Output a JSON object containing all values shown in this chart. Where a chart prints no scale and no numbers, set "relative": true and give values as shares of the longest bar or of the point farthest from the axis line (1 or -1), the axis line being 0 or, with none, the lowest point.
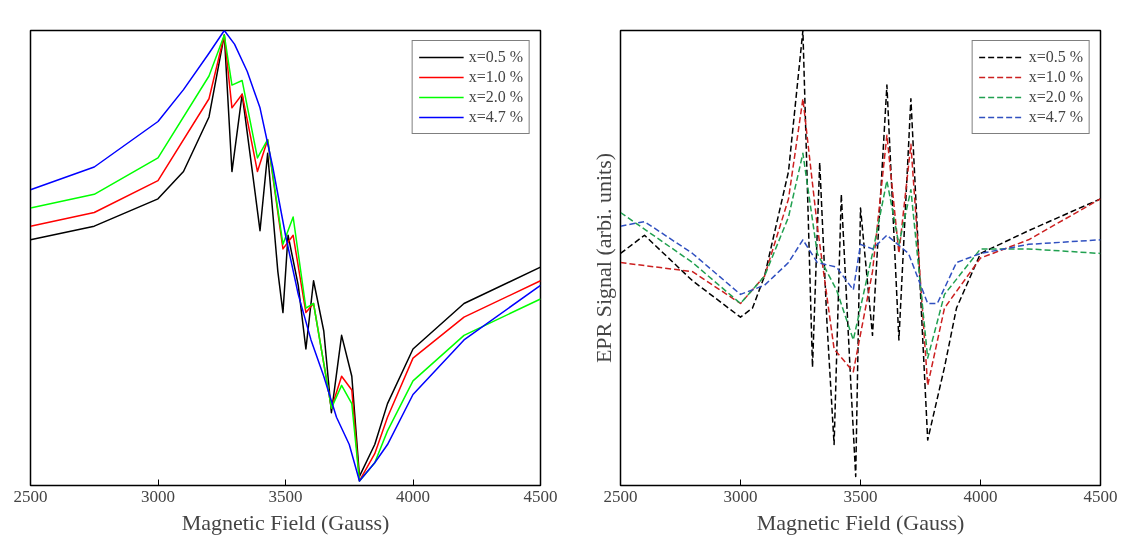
{
  "chart_data": [
    {
      "type": "line",
      "xlabel": "Magnetic Field (Gauss)",
      "relative": true,
      "xlim": [
        2500,
        4500
      ],
      "xticks": [
        2500,
        3000,
        3500,
        4000,
        4500
      ],
      "tick_labels": "x",
      "legend": "top right",
      "grid": false,
      "line_style": "solid",
      "series": [
        {
          "name": "x=0.5 %",
          "color": "#000000",
          "x": [
            2500,
            2750,
            3000,
            3100,
            3200,
            3260,
            3290,
            3330,
            3370,
            3400,
            3430,
            3470,
            3490,
            3510,
            3550,
            3580,
            3610,
            3650,
            3680,
            3720,
            3760,
            3790,
            3850,
            3900,
            4000,
            4200,
            4500
          ],
          "values": [
            0.54,
            0.57,
            0.63,
            0.69,
            0.81,
            0.99,
            0.69,
            0.86,
            0.69,
            0.56,
            0.73,
            0.47,
            0.38,
            0.55,
            0.44,
            0.3,
            0.45,
            0.34,
            0.16,
            0.33,
            0.24,
            0.02,
            0.09,
            0.18,
            0.3,
            0.4,
            0.48
          ]
        },
        {
          "name": "x=1.0 %",
          "color": "#ff0000",
          "x": [
            2500,
            2750,
            3000,
            3200,
            3260,
            3290,
            3330,
            3390,
            3430,
            3490,
            3530,
            3580,
            3610,
            3680,
            3720,
            3760,
            3790,
            3850,
            3900,
            4000,
            4200,
            4500
          ],
          "values": [
            0.57,
            0.6,
            0.67,
            0.85,
            0.99,
            0.83,
            0.86,
            0.69,
            0.76,
            0.52,
            0.55,
            0.38,
            0.4,
            0.17,
            0.24,
            0.21,
            0.01,
            0.07,
            0.15,
            0.28,
            0.37,
            0.45
          ]
        },
        {
          "name": "x=2.0 %",
          "color": "#00ff00",
          "x": [
            2500,
            2750,
            3000,
            3200,
            3260,
            3290,
            3330,
            3390,
            3430,
            3490,
            3530,
            3580,
            3610,
            3680,
            3720,
            3760,
            3790,
            3850,
            3900,
            4000,
            4200,
            4500
          ],
          "values": [
            0.61,
            0.64,
            0.72,
            0.9,
            0.99,
            0.88,
            0.89,
            0.72,
            0.76,
            0.53,
            0.59,
            0.39,
            0.4,
            0.17,
            0.22,
            0.18,
            0.01,
            0.05,
            0.12,
            0.23,
            0.33,
            0.41
          ]
        },
        {
          "name": "x=4.7 %",
          "color": "#0000ff",
          "x": [
            2500,
            2750,
            3000,
            3100,
            3200,
            3260,
            3300,
            3350,
            3400,
            3450,
            3500,
            3550,
            3600,
            3650,
            3700,
            3750,
            3790,
            3850,
            3900,
            4000,
            4200,
            4500
          ],
          "values": [
            0.65,
            0.7,
            0.8,
            0.87,
            0.95,
            1.0,
            0.97,
            0.91,
            0.83,
            0.7,
            0.55,
            0.42,
            0.32,
            0.24,
            0.15,
            0.09,
            0.01,
            0.05,
            0.09,
            0.2,
            0.32,
            0.44
          ]
        }
      ]
    },
    {
      "type": "line",
      "xlabel": "Magnetic Field (Gauss)",
      "ylabel": "EPR Signal (arbi. units)",
      "relative": true,
      "xlim": [
        2500,
        4500
      ],
      "xticks": [
        2500,
        3000,
        3500,
        4000,
        4500
      ],
      "tick_labels": "x",
      "legend": "top right",
      "grid": false,
      "line_style": "dashed",
      "series": [
        {
          "name": "x=0.5 %",
          "color": "#000000",
          "x": [
            2500,
            2600,
            2800,
            3000,
            3050,
            3100,
            3200,
            3260,
            3300,
            3330,
            3360,
            3390,
            3420,
            3460,
            3480,
            3500,
            3550,
            3610,
            3660,
            3710,
            3780,
            3850,
            3900,
            4000,
            4200,
            4500
          ],
          "values": [
            0.51,
            0.55,
            0.45,
            0.37,
            0.39,
            0.46,
            0.69,
            1.0,
            0.26,
            0.71,
            0.36,
            0.09,
            0.64,
            0.22,
            0.02,
            0.61,
            0.33,
            0.88,
            0.32,
            0.85,
            0.1,
            0.26,
            0.39,
            0.51,
            0.56,
            0.63
          ]
        },
        {
          "name": "x=1.0 %",
          "color": "#cc2020",
          "x": [
            2500,
            2800,
            3000,
            3100,
            3200,
            3260,
            3320,
            3390,
            3470,
            3550,
            3610,
            3660,
            3710,
            3780,
            3850,
            4000,
            4200,
            4500
          ],
          "values": [
            0.49,
            0.47,
            0.4,
            0.46,
            0.63,
            0.85,
            0.57,
            0.3,
            0.25,
            0.47,
            0.77,
            0.51,
            0.75,
            0.22,
            0.39,
            0.5,
            0.54,
            0.63
          ]
        },
        {
          "name": "x=2.0 %",
          "color": "#20a050",
          "x": [
            2500,
            2800,
            3000,
            3100,
            3200,
            3260,
            3320,
            3400,
            3470,
            3550,
            3610,
            3660,
            3710,
            3780,
            3850,
            4000,
            4200,
            4500
          ],
          "values": [
            0.6,
            0.49,
            0.4,
            0.46,
            0.59,
            0.73,
            0.51,
            0.43,
            0.32,
            0.51,
            0.67,
            0.53,
            0.65,
            0.28,
            0.42,
            0.52,
            0.52,
            0.51
          ]
        },
        {
          "name": "x=4.7 %",
          "color": "#3050c0",
          "x": [
            2500,
            2600,
            2800,
            3000,
            3100,
            3200,
            3260,
            3320,
            3400,
            3470,
            3500,
            3550,
            3610,
            3700,
            3780,
            3820,
            3900,
            4000,
            4200,
            4500
          ],
          "values": [
            0.57,
            0.58,
            0.51,
            0.42,
            0.44,
            0.49,
            0.54,
            0.49,
            0.48,
            0.43,
            0.53,
            0.52,
            0.55,
            0.51,
            0.4,
            0.4,
            0.49,
            0.51,
            0.53,
            0.54
          ]
        }
      ]
    }
  ]
}
